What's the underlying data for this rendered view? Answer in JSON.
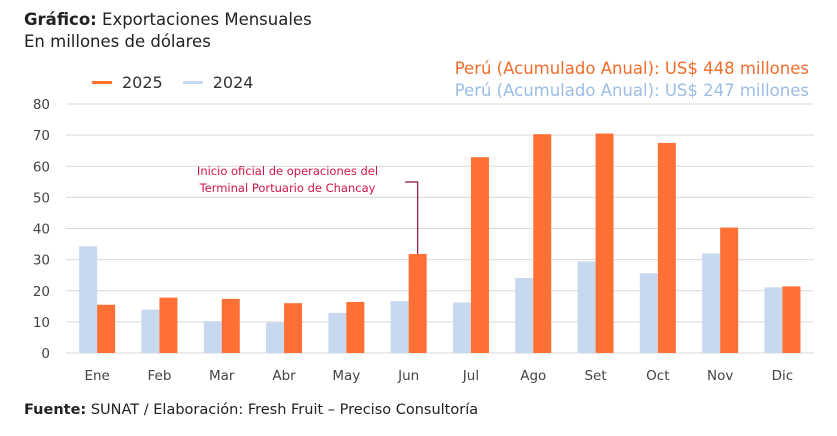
{
  "header": {
    "title_label": "Gráfico:",
    "title": "Exportaciones Mensuales",
    "subtitle": "En millones de dólares"
  },
  "totals": [
    {
      "text": "Perú (Acumulado Anual): US$ 448 millones",
      "color": "#f26c2b"
    },
    {
      "text": "Perú (Acumulado Anual): US$ 247 millones",
      "color": "#9dbde6"
    }
  ],
  "annotation": {
    "line1": "Inicio oficial de operaciones del",
    "line2": "Terminal Portuario de Chancay",
    "category": "Jun",
    "color": "#d11645"
  },
  "footer": {
    "label": "Fuente:",
    "text": "SUNAT / Elaboración: Fresh Fruit – Preciso Consultoría"
  },
  "chart_data": {
    "type": "bar",
    "categories": [
      "Ene",
      "Feb",
      "Mar",
      "Abr",
      "May",
      "Jun",
      "Jul",
      "Ago",
      "Set",
      "Oct",
      "Nov",
      "Dic"
    ],
    "series": [
      {
        "name": "2025",
        "color": "#fe7033",
        "values": [
          15.5,
          17.8,
          17.4,
          16.0,
          16.4,
          31.8,
          62.9,
          70.3,
          70.5,
          67.5,
          40.3,
          21.4
        ]
      },
      {
        "name": "2024",
        "color": "#c7d8ef",
        "values": [
          34.3,
          13.9,
          10.2,
          9.8,
          12.9,
          16.7,
          16.2,
          24.1,
          29.4,
          25.6,
          32.0,
          21.1
        ]
      }
    ],
    "bar_order": [
      "2024",
      "2025"
    ],
    "ylim": [
      0,
      80
    ],
    "yticks": [
      0,
      10,
      20,
      30,
      40,
      50,
      60,
      70,
      80
    ],
    "grid": true,
    "legend": "top-left"
  }
}
